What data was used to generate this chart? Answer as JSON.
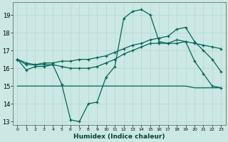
{
  "xlabel": "Humidex (Indice chaleur)",
  "bg_color": "#cce8e4",
  "grid_color": "#b0d8d0",
  "line_color": "#006655",
  "xlim": [
    -0.5,
    23.5
  ],
  "ylim": [
    12.8,
    19.7
  ],
  "yticks": [
    13,
    14,
    15,
    16,
    17,
    18,
    19
  ],
  "xticks": [
    0,
    1,
    2,
    3,
    4,
    5,
    6,
    7,
    8,
    9,
    10,
    11,
    12,
    13,
    14,
    15,
    16,
    17,
    18,
    19,
    20,
    21,
    22,
    23
  ],
  "series": [
    [
      16.5,
      15.9,
      16.1,
      16.1,
      16.2,
      15.1,
      13.1,
      13.0,
      14.0,
      14.1,
      15.5,
      16.1,
      18.8,
      19.2,
      19.3,
      19.0,
      17.5,
      17.4,
      17.6,
      17.5,
      16.4,
      15.7,
      15.0,
      14.9
    ],
    [
      16.5,
      16.2,
      16.2,
      16.3,
      16.3,
      16.4,
      16.4,
      16.5,
      16.5,
      16.6,
      16.7,
      16.9,
      17.1,
      17.3,
      17.4,
      17.6,
      17.7,
      17.8,
      18.2,
      18.3,
      17.5,
      17.0,
      16.5,
      15.8
    ],
    [
      16.5,
      16.3,
      16.2,
      16.2,
      16.2,
      16.1,
      16.0,
      16.0,
      16.0,
      16.1,
      16.3,
      16.5,
      16.8,
      17.0,
      17.2,
      17.4,
      17.4,
      17.4,
      17.4,
      17.5,
      17.4,
      17.3,
      17.2,
      17.1
    ],
    [
      15.0,
      15.0,
      15.0,
      15.0,
      15.0,
      15.0,
      15.0,
      15.0,
      15.0,
      15.0,
      15.0,
      15.0,
      15.0,
      15.0,
      15.0,
      15.0,
      15.0,
      15.0,
      15.0,
      15.0,
      14.9,
      14.9,
      14.9,
      14.9
    ]
  ],
  "markers": [
    true,
    true,
    true,
    false
  ],
  "linewidths": [
    0.9,
    0.9,
    0.9,
    0.9
  ]
}
